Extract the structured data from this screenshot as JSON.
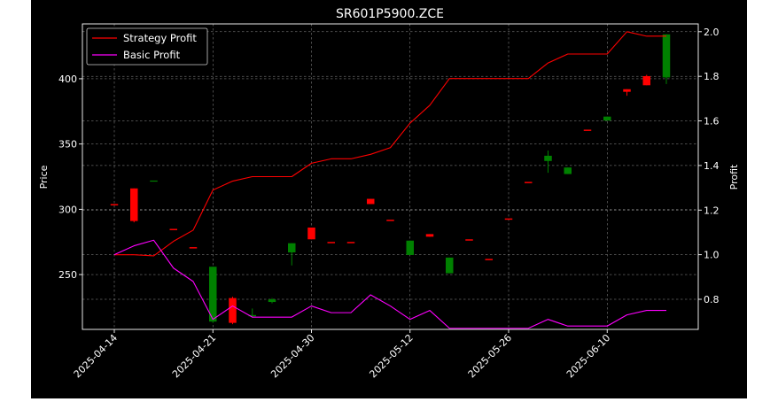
{
  "chart_data": {
    "type": "candlestick",
    "title": "SR601P5900.ZCE",
    "ylabel_left": "Price",
    "ylabel_right": "Profit",
    "xlabel": "",
    "ylim_left": [
      208,
      442
    ],
    "ylim_right": [
      0.665,
      2.035
    ],
    "yticks_left": [
      250,
      300,
      350,
      400
    ],
    "yticks_right": [
      0.8,
      1.0,
      1.2,
      1.4,
      1.6,
      1.8,
      2.0
    ],
    "xtick_labels": [
      {
        "label": "2025-04-14",
        "index": 0
      },
      {
        "label": "2025-04-21",
        "index": 5
      },
      {
        "label": "2025-04-30",
        "index": 10
      },
      {
        "label": "2025-05-12",
        "index": 15
      },
      {
        "label": "2025-05-26",
        "index": 20
      },
      {
        "label": "2025-06-10",
        "index": 25
      }
    ],
    "grid": true,
    "legend_position": "top-left",
    "up_color": "#008000",
    "down_color": "#ff0000",
    "candles": [
      {
        "o": 304,
        "h": 304,
        "l": 304,
        "c": 303
      },
      {
        "o": 316,
        "h": 316,
        "l": 290,
        "c": 291
      },
      {
        "o": 322,
        "h": 322,
        "l": 322,
        "c": 322
      },
      {
        "o": 285,
        "h": 285,
        "l": 285,
        "c": 284
      },
      {
        "o": 271,
        "h": 271,
        "l": 271,
        "c": 270
      },
      {
        "o": 214,
        "h": 256,
        "l": 213,
        "c": 256
      },
      {
        "o": 232,
        "h": 233,
        "l": 212,
        "c": 213
      },
      {
        "o": 218,
        "h": 224,
        "l": 217,
        "c": 219
      },
      {
        "o": 229,
        "h": 232,
        "l": 228,
        "c": 231
      },
      {
        "o": 267,
        "h": 274,
        "l": 257,
        "c": 274
      },
      {
        "o": 286,
        "h": 286,
        "l": 277,
        "c": 277
      },
      {
        "o": 275,
        "h": 275,
        "l": 275,
        "c": 274
      },
      {
        "o": 275,
        "h": 275,
        "l": 275,
        "c": 274
      },
      {
        "o": 308,
        "h": 308,
        "l": 304,
        "c": 304
      },
      {
        "o": 292,
        "h": 292,
        "l": 292,
        "c": 291
      },
      {
        "o": 265,
        "h": 276,
        "l": 265,
        "c": 276
      },
      {
        "o": 281,
        "h": 281,
        "l": 279,
        "c": 279
      },
      {
        "o": 251,
        "h": 263,
        "l": 251,
        "c": 263
      },
      {
        "o": 277,
        "h": 277,
        "l": 277,
        "c": 276
      },
      {
        "o": 262,
        "h": 262,
        "l": 262,
        "c": 261
      },
      {
        "o": 293,
        "h": 293,
        "l": 293,
        "c": 292
      },
      {
        "o": 321,
        "h": 321,
        "l": 321,
        "c": 320
      },
      {
        "o": 337,
        "h": 345,
        "l": 328,
        "c": 341
      },
      {
        "o": 327,
        "h": 332,
        "l": 327,
        "c": 332
      },
      {
        "o": 361,
        "h": 361,
        "l": 361,
        "c": 360
      },
      {
        "o": 368,
        "h": 371,
        "l": 368,
        "c": 371
      },
      {
        "o": 392,
        "h": 392,
        "l": 387,
        "c": 390
      },
      {
        "o": 402,
        "h": 403,
        "l": 395,
        "c": 395
      },
      {
        "o": 401,
        "h": 434,
        "l": 396,
        "c": 434
      }
    ],
    "series": [
      {
        "name": "Strategy Profit",
        "color": "#ff0000",
        "axis": "right",
        "values": [
          1.0,
          1.0,
          0.995,
          1.06,
          1.11,
          1.29,
          1.33,
          1.35,
          1.35,
          1.35,
          1.41,
          1.43,
          1.43,
          1.45,
          1.48,
          1.59,
          1.67,
          1.79,
          1.79,
          1.79,
          1.79,
          1.79,
          1.86,
          1.9,
          1.9,
          1.9,
          2.0,
          1.98,
          1.98
        ]
      },
      {
        "name": "Basic Profit",
        "color": "#ff00ff",
        "axis": "right",
        "values": [
          1.0,
          1.04,
          1.065,
          0.94,
          0.88,
          0.71,
          0.77,
          0.72,
          0.72,
          0.72,
          0.77,
          0.74,
          0.74,
          0.82,
          0.77,
          0.71,
          0.75,
          0.67,
          0.67,
          0.67,
          0.67,
          0.67,
          0.71,
          0.68,
          0.68,
          0.68,
          0.73,
          0.75,
          0.75
        ]
      }
    ]
  }
}
